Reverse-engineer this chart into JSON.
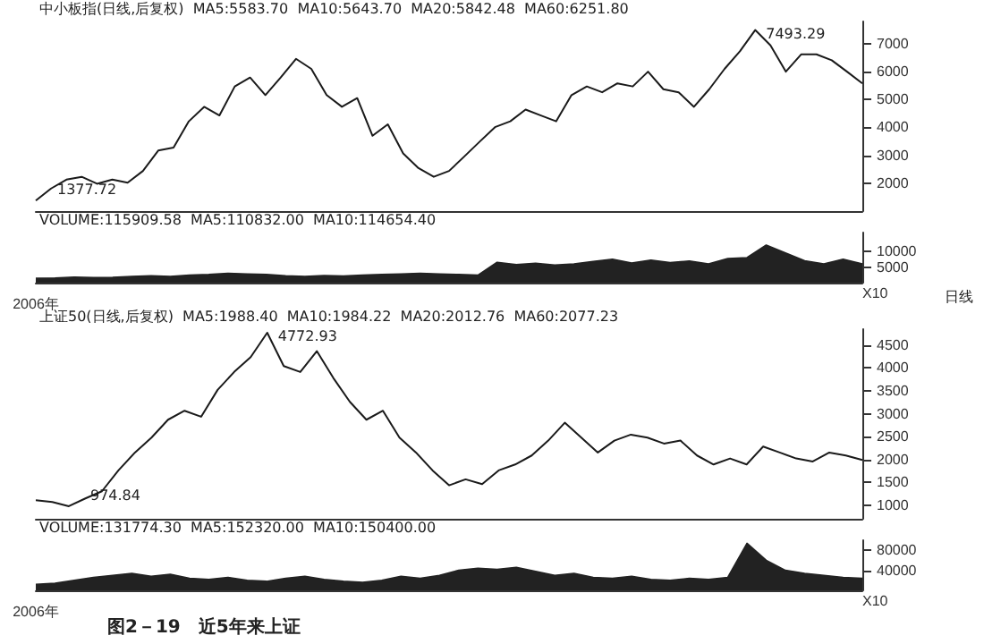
{
  "chart_data": [
    {
      "type": "line",
      "annotations": [
        "中小板指(日线,后复权)  MA5:5583.70  MA10:5643.70  MA20:5842.48  MA60:6251.80",
        "7493.29",
        "1377.72"
      ],
      "categories": [
        null,
        null,
        null,
        null,
        null,
        null,
        null,
        null,
        null,
        null,
        null,
        null,
        null,
        null,
        null,
        null,
        null,
        null,
        null,
        null,
        null,
        null,
        null,
        null,
        null,
        null,
        null,
        null,
        null,
        null,
        null,
        null,
        null,
        null,
        null,
        null,
        null,
        null,
        null,
        null,
        null,
        null,
        null,
        null,
        null,
        null,
        null,
        null,
        null,
        null,
        null,
        null,
        null,
        null,
        null
      ],
      "series": [
        {
          "color": "#1a1a1a",
          "values": [
            1377.72,
            1810,
            2130,
            2230,
            1980,
            2130,
            2020,
            2440,
            3170,
            3280,
            4220,
            4740,
            4430,
            5470,
            5790,
            5160,
            5790,
            6460,
            6100,
            5160,
            4740,
            5050,
            3700,
            4110,
            3070,
            2540,
            2230,
            2440,
            2960,
            3490,
            4010,
            4220,
            4640,
            4430,
            4220,
            5160,
            5470,
            5260,
            5580,
            5470,
            6000,
            5370,
            5260,
            4740,
            5370,
            6100,
            6730,
            7493.29,
            6940,
            6000,
            6620,
            6620,
            6410,
            6000,
            5580
          ]
        }
      ],
      "ylim": [
        1000,
        7800
      ],
      "yticks": [
        2000,
        3000,
        4000,
        5000,
        6000,
        7000
      ],
      "tick_labels": "y",
      "grid": false
    },
    {
      "type": "area",
      "annotations": [
        "VOLUME:115909.58  MA5:110832.00  MA10:114654.40",
        "日线"
      ],
      "ylabel": "X10",
      "categories": [
        "2006年",
        null,
        null,
        null,
        null,
        null,
        null,
        null,
        null,
        null,
        null,
        null,
        null,
        null,
        null,
        null,
        null,
        null,
        null,
        null,
        null,
        null,
        null,
        null,
        null,
        null,
        null,
        null,
        null,
        null,
        null,
        null,
        null,
        null,
        null,
        null,
        null,
        null,
        null,
        null,
        null,
        null,
        null,
        null
      ],
      "series": [
        {
          "color": "#222222",
          "values": [
            1400,
            1500,
            1800,
            1600,
            1700,
            2000,
            2200,
            2000,
            2400,
            2600,
            3000,
            2800,
            2600,
            2200,
            2000,
            2300,
            2100,
            2400,
            2600,
            2800,
            3000,
            2800,
            2600,
            2400,
            6500,
            5800,
            6200,
            5600,
            6000,
            6800,
            7500,
            6300,
            7200,
            6400,
            6900,
            6000,
            7700,
            8000,
            12000,
            9500,
            7000,
            6000,
            7500,
            6000
          ]
        }
      ],
      "ylim": [
        0,
        16000
      ],
      "yticks": [
        5000,
        10000
      ],
      "grid": false
    },
    {
      "type": "line",
      "annotations": [
        "上证50(日线,后复权)  MA5:1988.40  MA10:1984.22  MA20:2012.76  MA60:2077.23",
        "4772.93",
        "974.84"
      ],
      "categories": [
        null,
        null,
        null,
        null,
        null,
        null,
        null,
        null,
        null,
        null,
        null,
        null,
        null,
        null,
        null,
        null,
        null,
        null,
        null,
        null,
        null,
        null,
        null,
        null,
        null,
        null,
        null,
        null,
        null,
        null,
        null,
        null,
        null,
        null,
        null,
        null,
        null,
        null,
        null,
        null,
        null,
        null,
        null,
        null,
        null,
        null,
        null,
        null,
        null,
        null,
        null
      ],
      "series": [
        {
          "color": "#1a1a1a",
          "values": [
            1106,
            1067,
            974.84,
            1145,
            1302,
            1759,
            2150,
            2477,
            2868,
            3064,
            2933,
            3521,
            3913,
            4239,
            4772.93,
            4043,
            3913,
            4369,
            3782,
            3260,
            2868,
            3064,
            2477,
            2150,
            1759,
            1432,
            1563,
            1458,
            1759,
            1889,
            2085,
            2411,
            2803,
            2477,
            2150,
            2411,
            2542,
            2477,
            2346,
            2411,
            2085,
            1889,
            2020,
            1889,
            2281,
            2150,
            2020,
            1954,
            2150,
            2085,
            1988
          ]
        }
      ],
      "ylim": [
        700,
        4850
      ],
      "yticks": [
        1000,
        1500,
        2000,
        2500,
        3000,
        3500,
        4000,
        4500
      ],
      "tick_labels": "y",
      "grid": false
    },
    {
      "type": "area",
      "annotations": [
        "VOLUME:131774.30  MA5:152320.00  MA10:150400.00",
        "图2－19　近5年来上证"
      ],
      "ylabel": "X10",
      "categories": [
        "2006年",
        null,
        null,
        null,
        null,
        null,
        null,
        null,
        null,
        null,
        null,
        null,
        null,
        null,
        null,
        null,
        null,
        null,
        null,
        null,
        null,
        null,
        null,
        null,
        null,
        null,
        null,
        null,
        null,
        null,
        null,
        null,
        null,
        null,
        null,
        null,
        null,
        null,
        null,
        null,
        null,
        null,
        null,
        null
      ],
      "series": [
        {
          "color": "#222222",
          "values": [
            12000,
            14000,
            20000,
            26000,
            30000,
            34000,
            28000,
            32000,
            24000,
            22000,
            26000,
            20000,
            18000,
            24000,
            28000,
            22000,
            18000,
            16000,
            20000,
            28000,
            24000,
            30000,
            40000,
            44000,
            42000,
            46000,
            38000,
            30000,
            34000,
            26000,
            24000,
            28000,
            22000,
            20000,
            24000,
            22000,
            26000,
            94000,
            60000,
            40000,
            34000,
            30000,
            26000,
            24000
          ]
        }
      ],
      "ylim": [
        0,
        100000
      ],
      "yticks": [
        40000,
        80000
      ],
      "grid": false
    }
  ]
}
